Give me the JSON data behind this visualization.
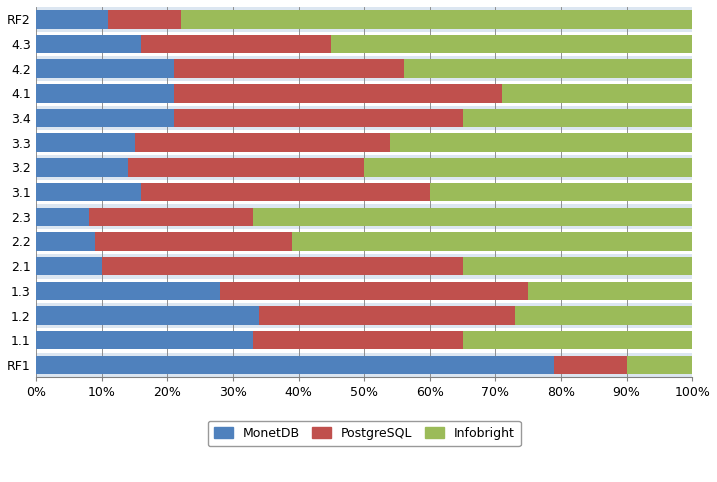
{
  "categories": [
    "RF1",
    "1.1",
    "1.2",
    "1.3",
    "2.1",
    "2.2",
    "2.3",
    "3.1",
    "3.2",
    "3.3",
    "3.4",
    "4.1",
    "4.2",
    "4.3",
    "RF2"
  ],
  "monetdb": [
    79,
    33,
    34,
    28,
    10,
    9,
    8,
    16,
    14,
    15,
    21,
    21,
    21,
    16,
    11
  ],
  "postgresql": [
    11,
    32,
    39,
    47,
    55,
    30,
    25,
    44,
    36,
    39,
    44,
    50,
    35,
    29,
    11
  ],
  "infobright": [
    10,
    35,
    27,
    25,
    35,
    61,
    67,
    40,
    50,
    46,
    35,
    29,
    44,
    55,
    78
  ],
  "colors": {
    "monetdb": "#4F81BD",
    "postgresql": "#C0504D",
    "infobright": "#9BBB59"
  },
  "row_bg_even": "#DCE6F1",
  "row_bg_odd": "#FFFFFF",
  "grid_color": "#808080",
  "background_color": "#FFFFFF"
}
